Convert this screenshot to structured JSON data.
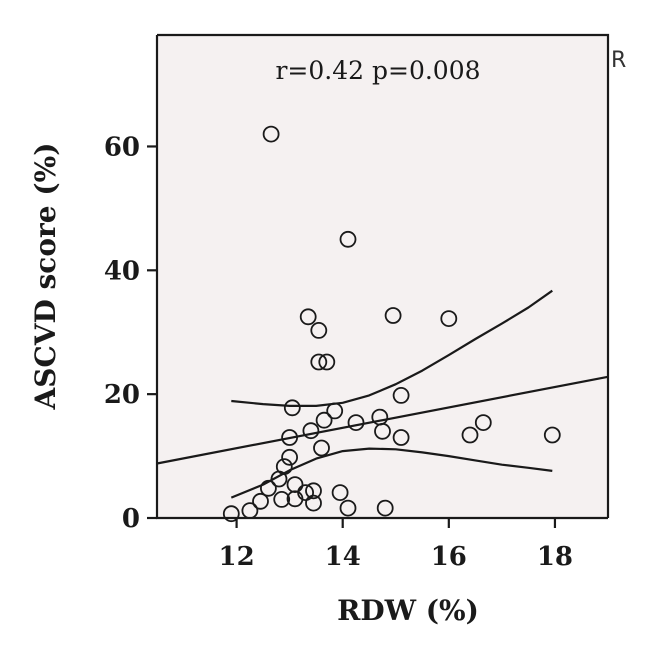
{
  "chart_data": {
    "type": "scatter",
    "xlabel": "RDW (%)",
    "ylabel": "ASCVD score (%)",
    "xlim": [
      10.5,
      19.0
    ],
    "ylim": [
      0,
      78
    ],
    "x_ticks": [
      12,
      14,
      16,
      18
    ],
    "y_ticks": [
      0,
      20,
      40,
      60
    ],
    "annotation": "r=0.42 p=0.008",
    "corner_mark": "R",
    "grid": false,
    "colors": {
      "background": "#f5f1f1",
      "marker": "#1a1a1a",
      "line": "#1a1a1a"
    },
    "points": [
      {
        "x": 12.65,
        "y": 62.0
      },
      {
        "x": 14.1,
        "y": 45.0
      },
      {
        "x": 13.35,
        "y": 32.5
      },
      {
        "x": 13.55,
        "y": 30.3
      },
      {
        "x": 14.95,
        "y": 32.7
      },
      {
        "x": 16.0,
        "y": 32.2
      },
      {
        "x": 13.55,
        "y": 25.2
      },
      {
        "x": 13.7,
        "y": 25.2
      },
      {
        "x": 15.1,
        "y": 19.8
      },
      {
        "x": 13.05,
        "y": 17.8
      },
      {
        "x": 13.85,
        "y": 17.3
      },
      {
        "x": 13.65,
        "y": 15.8
      },
      {
        "x": 14.25,
        "y": 15.4
      },
      {
        "x": 14.7,
        "y": 16.3
      },
      {
        "x": 16.65,
        "y": 15.4
      },
      {
        "x": 13.4,
        "y": 14.1
      },
      {
        "x": 14.75,
        "y": 14.0
      },
      {
        "x": 16.4,
        "y": 13.4
      },
      {
        "x": 17.95,
        "y": 13.4
      },
      {
        "x": 15.1,
        "y": 13.0
      },
      {
        "x": 13.0,
        "y": 13.0
      },
      {
        "x": 13.6,
        "y": 11.3
      },
      {
        "x": 13.0,
        "y": 9.8
      },
      {
        "x": 12.9,
        "y": 8.3
      },
      {
        "x": 12.8,
        "y": 6.3
      },
      {
        "x": 12.6,
        "y": 4.8
      },
      {
        "x": 13.1,
        "y": 5.4
      },
      {
        "x": 13.3,
        "y": 4.1
      },
      {
        "x": 13.45,
        "y": 4.4
      },
      {
        "x": 12.45,
        "y": 2.7
      },
      {
        "x": 12.85,
        "y": 3.0
      },
      {
        "x": 13.1,
        "y": 3.1
      },
      {
        "x": 13.45,
        "y": 2.4
      },
      {
        "x": 13.95,
        "y": 4.1
      },
      {
        "x": 12.25,
        "y": 1.2
      },
      {
        "x": 11.9,
        "y": 0.7
      },
      {
        "x": 14.1,
        "y": 1.6
      },
      {
        "x": 14.8,
        "y": 1.6
      }
    ],
    "fit_line": {
      "x": [
        10.5,
        19.0
      ],
      "y": [
        8.8,
        22.8
      ]
    },
    "ci_upper": {
      "x": [
        11.9,
        12.5,
        13.0,
        13.5,
        14.0,
        14.5,
        15.0,
        15.5,
        16.0,
        16.5,
        17.0,
        17.5,
        17.95
      ],
      "y": [
        18.9,
        18.4,
        18.1,
        18.1,
        18.6,
        19.8,
        21.6,
        23.8,
        26.3,
        28.9,
        31.4,
        34.0,
        36.7
      ]
    },
    "ci_lower": {
      "x": [
        11.9,
        12.5,
        13.0,
        13.5,
        14.0,
        14.5,
        15.0,
        15.5,
        16.0,
        16.5,
        17.0,
        17.5,
        17.95
      ],
      "y": [
        3.3,
        5.4,
        7.7,
        9.6,
        10.8,
        11.2,
        11.1,
        10.6,
        10.0,
        9.3,
        8.6,
        8.1,
        7.6
      ]
    }
  }
}
